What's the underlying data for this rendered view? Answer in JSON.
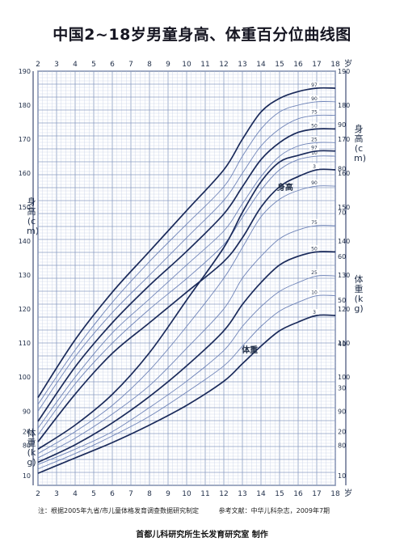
{
  "title": "中国2~18岁男童身高、体重百分位曲线图",
  "axis_unit_top": "岁",
  "axis_unit_bottom": "岁",
  "height_axis_label": "身高(cm)",
  "weight_axis_label_mid": "体重(kg)",
  "weight_axis_label_left": "体重(kg)",
  "height_axis_label_right": "身高(cm)",
  "footnote_source": "注：根据2005年九省/市儿童体格发育调查数据研究制定",
  "footnote_ref": "参考文献：中华儿科杂志，2009年7期",
  "credit": "首都儿科研究所生长发育研究室 制作",
  "colors": {
    "grid": "#8a9cc2",
    "grid_minor": "#c6d0e6",
    "major_curve": "#1a2a5a",
    "minor_curve": "#6f84b8",
    "text": "#22304a"
  },
  "chart_data": [
    {
      "type": "line",
      "name": "height",
      "series_label": "身高",
      "x": [
        2,
        4,
        6,
        8,
        10,
        12,
        13,
        14,
        15,
        16,
        17,
        18
      ],
      "xlim": [
        2,
        18
      ],
      "ylim": [
        70,
        190
      ],
      "y_ticks": [
        80,
        90,
        100,
        110,
        120,
        130,
        140,
        150,
        160,
        170,
        180,
        190
      ],
      "series": [
        {
          "name": "97",
          "values": [
            94,
            111,
            125,
            137,
            149,
            161,
            170,
            178,
            182,
            184,
            185,
            185
          ]
        },
        {
          "name": "90",
          "values": [
            92,
            108,
            122,
            134,
            145,
            156,
            165,
            173,
            178,
            180,
            181,
            181
          ]
        },
        {
          "name": "75",
          "values": [
            90,
            106,
            119,
            130,
            141,
            152,
            160,
            168,
            173,
            176,
            177,
            177
          ]
        },
        {
          "name": "50",
          "values": [
            87,
            103,
            116,
            127,
            137,
            148,
            156,
            164,
            169,
            172,
            173,
            173
          ]
        },
        {
          "name": "25",
          "values": [
            85,
            100,
            113,
            123,
            133,
            143,
            151,
            159,
            165,
            168,
            169,
            169
          ]
        },
        {
          "name": "10",
          "values": [
            83,
            98,
            110,
            120,
            129,
            139,
            147,
            155,
            161,
            164,
            165,
            165
          ]
        },
        {
          "name": "3",
          "values": [
            81,
            95,
            107,
            116,
            125,
            134,
            141,
            150,
            156,
            159,
            161,
            161
          ]
        }
      ]
    },
    {
      "type": "line",
      "name": "weight",
      "series_label": "体重",
      "x": [
        2,
        4,
        6,
        8,
        10,
        12,
        13,
        14,
        15,
        16,
        17,
        18
      ],
      "xlim": [
        2,
        18
      ],
      "ylim": [
        0,
        95
      ],
      "y_ticks": [
        10,
        20,
        30,
        40,
        50,
        60,
        70,
        80,
        90
      ],
      "series": [
        {
          "name": "97",
          "values": [
            16,
            21.5,
            28.5,
            38,
            50,
            62,
            70,
            77,
            81.5,
            83,
            84,
            84
          ]
        },
        {
          "name": "90",
          "values": [
            15,
            20,
            26,
            34,
            44,
            55,
            62,
            69,
            73,
            75,
            76,
            76
          ]
        },
        {
          "name": "75",
          "values": [
            14,
            18.5,
            24,
            30.5,
            39,
            48,
            55,
            60,
            64,
            66,
            67,
            67
          ]
        },
        {
          "name": "50",
          "values": [
            13,
            17,
            22,
            28,
            35,
            43,
            49,
            54,
            58,
            60,
            61,
            61
          ]
        },
        {
          "name": "25",
          "values": [
            12.5,
            16,
            20,
            25.5,
            31.5,
            38.5,
            44,
            48.5,
            52,
            54,
            55.5,
            55.5
          ]
        },
        {
          "name": "10",
          "values": [
            11.5,
            15,
            19,
            23.5,
            29,
            35,
            39.5,
            44,
            47.5,
            49.5,
            51,
            51
          ]
        },
        {
          "name": "3",
          "values": [
            10.5,
            14,
            17.5,
            21.5,
            26,
            31.5,
            35.5,
            39.5,
            43,
            45,
            46.5,
            46.5
          ]
        }
      ]
    }
  ]
}
